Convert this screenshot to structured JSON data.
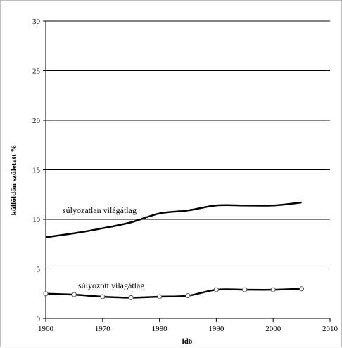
{
  "chart_data": {
    "type": "line",
    "title": "",
    "xlabel": "idö",
    "ylabel": "külföldön született %",
    "xlim": [
      1960,
      2010
    ],
    "ylim": [
      0,
      30
    ],
    "x_ticks": [
      "1960",
      "1970",
      "1980",
      "1990",
      "2000",
      "2010"
    ],
    "y_ticks": [
      "0",
      "5",
      "10",
      "15",
      "20",
      "25",
      "30"
    ],
    "grid": "horizontal",
    "series": [
      {
        "name": "súlyozatlan világátlag",
        "color": "#000000",
        "markers": false,
        "x": [
          1960,
          1965,
          1970,
          1975,
          1980,
          1985,
          1990,
          1995,
          2000,
          2005
        ],
        "y": [
          8.2,
          8.6,
          9.1,
          9.7,
          10.6,
          10.9,
          11.4,
          11.4,
          11.4,
          11.7
        ]
      },
      {
        "name": "súlyozott világátlag",
        "color": "#000000",
        "markers": true,
        "x": [
          1960,
          1965,
          1970,
          1975,
          1980,
          1985,
          1990,
          1995,
          2000,
          2005
        ],
        "y": [
          2.5,
          2.4,
          2.2,
          2.1,
          2.2,
          2.3,
          2.9,
          2.9,
          2.9,
          3.0
        ]
      }
    ]
  }
}
